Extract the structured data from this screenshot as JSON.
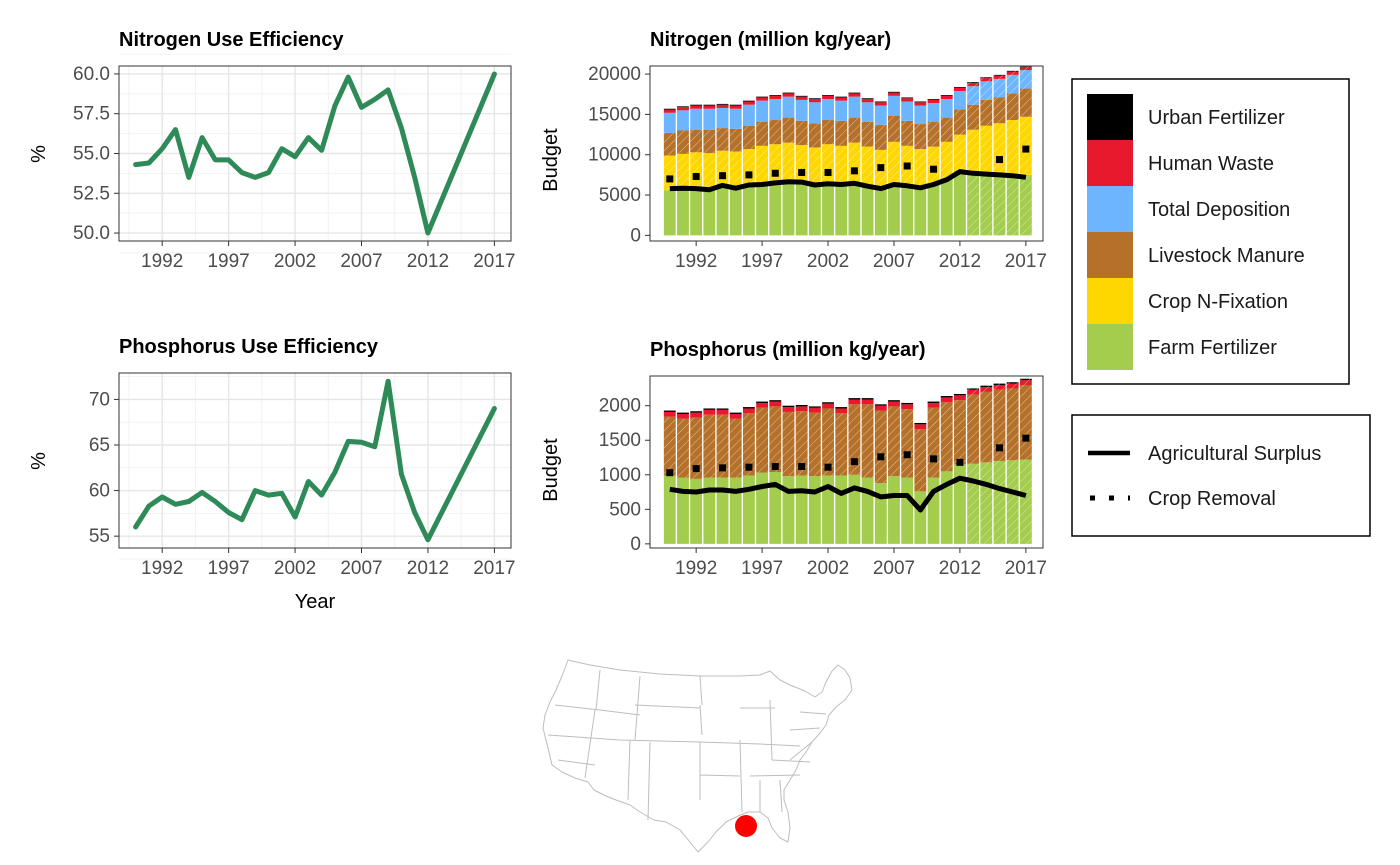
{
  "colors": {
    "nue_line": "#2e8b57",
    "urban_fertilizer": "#000000",
    "human_waste": "#e8192c",
    "total_deposition": "#6db6ff",
    "livestock_manure": "#b5712a",
    "crop_n_fixation": "#ffd700",
    "farm_fertilizer": "#a4cd4e"
  },
  "legend": {
    "fill_items": [
      {
        "label": "Urban Fertilizer",
        "color": "#000000"
      },
      {
        "label": "Human Waste",
        "color": "#e8192c"
      },
      {
        "label": "Total Deposition",
        "color": "#6db6ff"
      },
      {
        "label": "Livestock Manure",
        "color": "#b5712a"
      },
      {
        "label": "Crop N-Fixation",
        "color": "#ffd700"
      },
      {
        "label": "Farm Fertilizer",
        "color": "#a4cd4e"
      }
    ],
    "line_items": [
      {
        "label": "Agricultural Surplus",
        "style": "solid"
      },
      {
        "label": "Crop Removal",
        "style": "dotted"
      }
    ]
  },
  "map": {
    "marker_color": "#ff0000",
    "marker_region": "Louisiana coast"
  },
  "chart_data": [
    {
      "id": "nue",
      "type": "line",
      "title": "Nitrogen Use Efficiency",
      "xlabel": "",
      "ylabel": "%",
      "x": [
        1990,
        1991,
        1992,
        1993,
        1994,
        1995,
        1996,
        1997,
        1998,
        1999,
        2000,
        2001,
        2002,
        2003,
        2004,
        2005,
        2006,
        2007,
        2008,
        2009,
        2010,
        2011,
        2012,
        2017
      ],
      "values": [
        54.3,
        54.4,
        55.3,
        56.5,
        53.5,
        56.0,
        54.6,
        54.6,
        53.8,
        53.5,
        53.8,
        55.3,
        54.8,
        56.0,
        55.2,
        58.0,
        59.8,
        57.9,
        58.4,
        59.0,
        56.6,
        53.5,
        50.0,
        60.0
      ],
      "xticks": [
        "1992",
        "1997",
        "2002",
        "2007",
        "2012",
        "2017"
      ],
      "yticks": [
        "50.0",
        "52.5",
        "55.0",
        "57.5",
        "60.0"
      ],
      "xlim": [
        1988.75,
        2018.25
      ],
      "ylim": [
        49.5,
        60.5
      ]
    },
    {
      "id": "pue",
      "type": "line",
      "title": "Phosphorus Use Efficiency",
      "xlabel": "Year",
      "ylabel": "%",
      "x": [
        1990,
        1991,
        1992,
        1993,
        1994,
        1995,
        1996,
        1997,
        1998,
        1999,
        2000,
        2001,
        2002,
        2003,
        2004,
        2005,
        2006,
        2007,
        2008,
        2009,
        2010,
        2011,
        2012,
        2017
      ],
      "values": [
        56.0,
        58.3,
        59.3,
        58.5,
        58.8,
        59.8,
        58.8,
        57.6,
        56.8,
        60.0,
        59.5,
        59.7,
        57.1,
        61.0,
        59.5,
        62.0,
        65.4,
        65.3,
        64.8,
        72.0,
        61.8,
        57.6,
        54.6,
        69.0
      ],
      "xticks": [
        "1992",
        "1997",
        "2002",
        "2007",
        "2012",
        "2017"
      ],
      "yticks": [
        "55",
        "60",
        "65",
        "70"
      ],
      "xlim": [
        1988.75,
        2018.25
      ],
      "ylim": [
        53.7,
        72.9
      ]
    },
    {
      "id": "nbudget",
      "type": "bar",
      "stacked": true,
      "title": "Nitrogen (million kg/year)",
      "xlabel": "",
      "ylabel": "Budget",
      "x": [
        1990,
        1991,
        1992,
        1993,
        1994,
        1995,
        1996,
        1997,
        1998,
        1999,
        2000,
        2001,
        2002,
        2003,
        2004,
        2005,
        2006,
        2007,
        2008,
        2009,
        2010,
        2011,
        2012,
        2013,
        2014,
        2015,
        2016,
        2017
      ],
      "hatched_from": 2013,
      "series": [
        {
          "name": "Farm Fertilizer",
          "values": [
            5600,
            5800,
            5900,
            5700,
            6300,
            5900,
            6200,
            6400,
            6500,
            6700,
            6700,
            6300,
            6500,
            6300,
            6600,
            6100,
            5800,
            6400,
            6300,
            6000,
            6400,
            7100,
            8000,
            7900,
            7800,
            7700,
            7600,
            7500
          ]
        },
        {
          "name": "Crop N-Fixation",
          "values": [
            4300,
            4300,
            4400,
            4500,
            4200,
            4500,
            4500,
            4700,
            4800,
            4800,
            4500,
            4600,
            4800,
            4800,
            4900,
            4900,
            4800,
            5200,
            4800,
            4700,
            4600,
            4500,
            4500,
            5200,
            5800,
            6200,
            6700,
            7200
          ]
        },
        {
          "name": "Livestock Manure",
          "values": [
            2800,
            2900,
            2800,
            2900,
            2800,
            2800,
            2900,
            3000,
            3000,
            3100,
            3000,
            3000,
            3000,
            3100,
            3100,
            3100,
            3100,
            3200,
            3100,
            3100,
            3100,
            3000,
            3100,
            3100,
            3200,
            3200,
            3300,
            3500
          ]
        },
        {
          "name": "Total Deposition",
          "values": [
            2500,
            2500,
            2600,
            2600,
            2500,
            2500,
            2600,
            2600,
            2600,
            2600,
            2600,
            2600,
            2600,
            2500,
            2600,
            2400,
            2400,
            2500,
            2400,
            2300,
            2300,
            2300,
            2300,
            2300,
            2300,
            2300,
            2300,
            2300
          ]
        },
        {
          "name": "Human Waste",
          "values": [
            400,
            400,
            400,
            400,
            400,
            400,
            400,
            400,
            400,
            400,
            400,
            400,
            400,
            400,
            400,
            400,
            400,
            400,
            400,
            400,
            400,
            400,
            400,
            400,
            400,
            400,
            400,
            400
          ]
        },
        {
          "name": "Urban Fertilizer",
          "values": [
            100,
            100,
            100,
            100,
            100,
            100,
            100,
            100,
            100,
            100,
            100,
            100,
            100,
            100,
            100,
            100,
            100,
            100,
            100,
            100,
            100,
            100,
            100,
            100,
            100,
            100,
            100,
            100
          ]
        }
      ],
      "surplus": [
        5800,
        5850,
        5800,
        5650,
        6200,
        5850,
        6250,
        6300,
        6500,
        6650,
        6600,
        6250,
        6400,
        6300,
        6450,
        6100,
        5800,
        6300,
        6150,
        5900,
        6300,
        6900,
        7900,
        7700,
        7600,
        7500,
        7400,
        7200
      ],
      "removal_x": [
        1990,
        1992,
        1994,
        1996,
        1998,
        2000,
        2002,
        2004,
        2006,
        2008,
        2010,
        2015,
        2017
      ],
      "removal": [
        7000,
        7300,
        7400,
        7500,
        7700,
        7800,
        7800,
        8000,
        8400,
        8600,
        8200,
        9400,
        10700
      ],
      "xticks": [
        "1992",
        "1997",
        "2002",
        "2007",
        "2012",
        "2017"
      ],
      "yticks": [
        "0",
        "5000",
        "10000",
        "15000",
        "20000"
      ],
      "xlim": [
        1988.5,
        2018.3
      ],
      "ylim": [
        -700,
        21000
      ]
    },
    {
      "id": "pbudget",
      "type": "bar",
      "stacked": true,
      "title": "Phosphorus (million kg/year)",
      "xlabel": "",
      "ylabel": "Budget",
      "x": [
        1990,
        1991,
        1992,
        1993,
        1994,
        1995,
        1996,
        1997,
        1998,
        1999,
        2000,
        2001,
        2002,
        2003,
        2004,
        2005,
        2006,
        2007,
        2008,
        2009,
        2010,
        2011,
        2012,
        2013,
        2014,
        2015,
        2016,
        2017
      ],
      "hatched_from": 2013,
      "series": [
        {
          "name": "Farm Fertilizer",
          "values": [
            990,
            960,
            940,
            960,
            960,
            960,
            990,
            1030,
            1040,
            980,
            990,
            980,
            990,
            990,
            1000,
            960,
            880,
            980,
            960,
            760,
            960,
            1050,
            1150,
            1160,
            1180,
            1200,
            1210,
            1220
          ]
        },
        {
          "name": "Livestock Manure",
          "values": [
            850,
            850,
            890,
            910,
            910,
            850,
            900,
            940,
            950,
            930,
            930,
            920,
            970,
            900,
            1020,
            1060,
            1050,
            1010,
            990,
            900,
            1010,
            1000,
            930,
            1000,
            1020,
            1030,
            1040,
            1080
          ]
        },
        {
          "name": "Human Waste",
          "values": [
            70,
            70,
            70,
            70,
            70,
            70,
            70,
            70,
            70,
            70,
            70,
            70,
            70,
            70,
            70,
            70,
            70,
            70,
            70,
            70,
            70,
            70,
            70,
            70,
            70,
            70,
            70,
            70
          ]
        },
        {
          "name": "Urban Fertilizer",
          "values": [
            20,
            20,
            20,
            20,
            20,
            20,
            20,
            20,
            20,
            20,
            20,
            20,
            20,
            20,
            20,
            20,
            20,
            20,
            20,
            20,
            20,
            20,
            20,
            20,
            20,
            20,
            20,
            20
          ]
        }
      ],
      "surplus": [
        790,
        760,
        750,
        780,
        780,
        760,
        790,
        830,
        860,
        760,
        770,
        750,
        830,
        730,
        810,
        760,
        680,
        700,
        700,
        490,
        760,
        860,
        950,
        910,
        860,
        800,
        750,
        700
      ],
      "removal_x": [
        1990,
        1992,
        1994,
        1996,
        1998,
        2000,
        2002,
        2004,
        2006,
        2008,
        2010,
        2012,
        2015,
        2017
      ],
      "removal": [
        1030,
        1090,
        1100,
        1110,
        1120,
        1120,
        1110,
        1190,
        1260,
        1290,
        1230,
        1180,
        1390,
        1530
      ],
      "xticks": [
        "1992",
        "1997",
        "2002",
        "2007",
        "2012",
        "2017"
      ],
      "yticks": [
        "0",
        "500",
        "1000",
        "1500",
        "2000"
      ],
      "xlim": [
        1988.5,
        2018.3
      ],
      "ylim": [
        -60,
        2430
      ]
    }
  ]
}
